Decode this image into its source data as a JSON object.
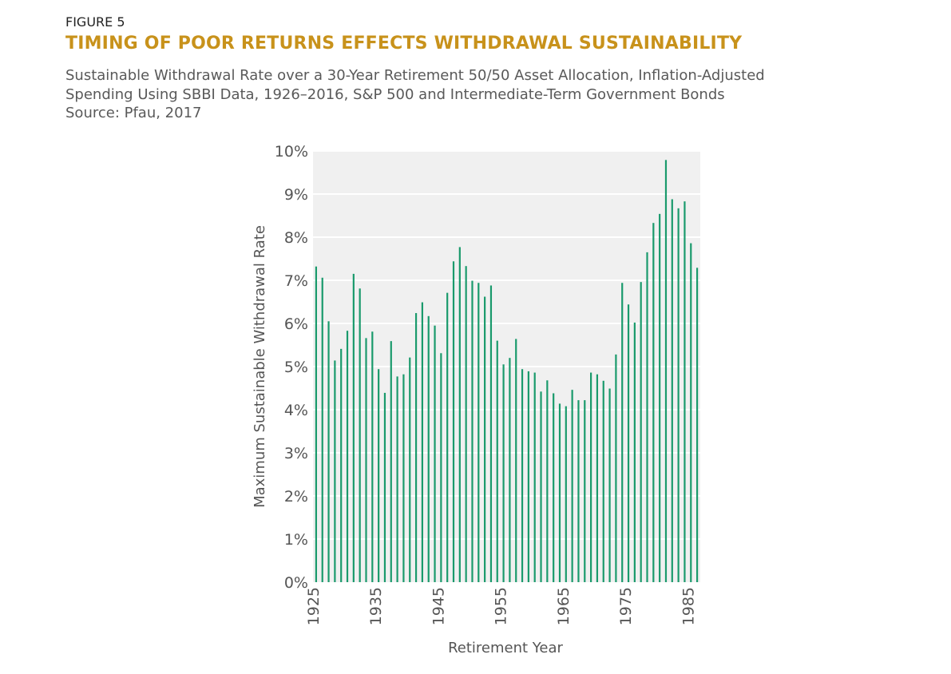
{
  "figure_label": "FIGURE 5",
  "title": "TIMING OF POOR RETURNS EFFECTS WITHDRAWAL SUSTAINABILITY",
  "subtitle_lines": [
    "Sustainable Withdrawal Rate over a 30-Year Retirement 50/50 Asset Allocation, Inflation-Adjusted",
    "Spending Using SBBI Data, 1926–2016, S&P 500 and Intermediate-Term Government Bonds",
    "Source: Pfau, 2017"
  ],
  "colors": {
    "bar": "#1a9a6c",
    "plot_bg": "#f0f0f0",
    "title": "#c8921b"
  },
  "chart_data": {
    "type": "bar",
    "title": "TIMING OF POOR RETURNS EFFECTS WITHDRAWAL SUSTAINABILITY",
    "xlabel": "Retirement Year",
    "ylabel": "Maximum Sustainable Withdrawal Rate",
    "ylim": [
      0,
      10
    ],
    "y_ticks": [
      "0%",
      "1%",
      "2%",
      "3%",
      "4%",
      "5%",
      "6%",
      "7%",
      "8%",
      "9%",
      "10%"
    ],
    "x_ticks": [
      "1925",
      "1935",
      "1945",
      "1955",
      "1965",
      "1975",
      "1985"
    ],
    "x_tick_values": [
      1925,
      1935,
      1945,
      1955,
      1965,
      1975,
      1985
    ],
    "xlim": [
      1925,
      1987
    ],
    "grid": true,
    "categories": [
      1926,
      1927,
      1928,
      1929,
      1930,
      1931,
      1932,
      1933,
      1934,
      1935,
      1936,
      1937,
      1938,
      1939,
      1940,
      1941,
      1942,
      1943,
      1944,
      1945,
      1946,
      1947,
      1948,
      1949,
      1950,
      1951,
      1952,
      1953,
      1954,
      1955,
      1956,
      1957,
      1958,
      1959,
      1960,
      1961,
      1962,
      1963,
      1964,
      1965,
      1966,
      1967,
      1968,
      1969,
      1970,
      1971,
      1972,
      1973,
      1974,
      1975,
      1976,
      1977,
      1978,
      1979,
      1980,
      1981,
      1982,
      1983,
      1984,
      1985,
      1986,
      1987
    ],
    "values": [
      7.32,
      7.06,
      6.05,
      5.14,
      5.41,
      5.83,
      7.15,
      6.81,
      5.66,
      5.81,
      4.94,
      4.39,
      5.59,
      4.77,
      4.82,
      5.21,
      6.24,
      6.49,
      6.17,
      5.95,
      5.31,
      6.71,
      7.44,
      7.77,
      7.33,
      6.99,
      6.94,
      6.62,
      6.88,
      5.6,
      5.05,
      5.2,
      5.64,
      4.94,
      4.89,
      4.86,
      4.42,
      4.68,
      4.38,
      4.14,
      4.08,
      4.46,
      4.22,
      4.22,
      4.86,
      4.82,
      4.67,
      4.49,
      5.28,
      6.94,
      6.44,
      6.02,
      6.96,
      7.65,
      8.33,
      8.54,
      9.79,
      8.88,
      8.67,
      8.83,
      7.86,
      7.29
    ]
  }
}
